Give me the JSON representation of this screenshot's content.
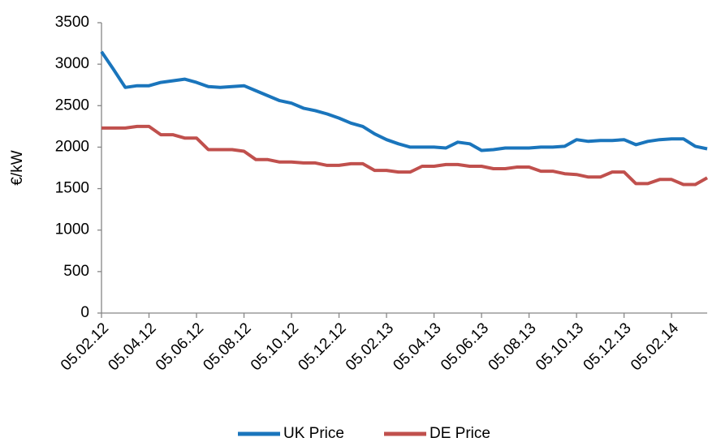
{
  "chart_data": {
    "type": "line",
    "y_label": "€/kW",
    "categories": [
      "05.02.12",
      null,
      null,
      null,
      "05.04.12",
      null,
      null,
      null,
      "05.06.12",
      null,
      null,
      null,
      "05.08.12",
      null,
      null,
      null,
      "05.10.12",
      null,
      null,
      null,
      "05.12.12",
      null,
      null,
      null,
      "05.02.13",
      null,
      null,
      null,
      "05.04.13",
      null,
      null,
      null,
      "05.06.13",
      null,
      null,
      null,
      "05.08.13",
      null,
      null,
      null,
      "05.10.13",
      null,
      null,
      null,
      "05.12.13",
      null,
      null,
      null,
      "05.02.14",
      null,
      null,
      null
    ],
    "series": [
      {
        "name": "UK Price",
        "color": "#1a75bc",
        "values": [
          3150,
          2940,
          2720,
          2740,
          2740,
          2780,
          2800,
          2820,
          2780,
          2730,
          2720,
          2730,
          2740,
          2680,
          2620,
          2560,
          2530,
          2470,
          2440,
          2400,
          2350,
          2290,
          2250,
          2160,
          2090,
          2040,
          2000,
          2000,
          2000,
          1990,
          2060,
          2040,
          1960,
          1970,
          1990,
          1990,
          1990,
          2000,
          2000,
          2010,
          2090,
          2070,
          2080,
          2080,
          2090,
          2030,
          2070,
          2090,
          2100,
          2100,
          2010,
          1980
        ]
      },
      {
        "name": "DE Price",
        "color": "#c0504d",
        "values": [
          2230,
          2230,
          2230,
          2250,
          2250,
          2150,
          2150,
          2110,
          2110,
          1970,
          1970,
          1970,
          1950,
          1850,
          1850,
          1820,
          1820,
          1810,
          1810,
          1780,
          1780,
          1800,
          1800,
          1720,
          1720,
          1700,
          1700,
          1770,
          1770,
          1790,
          1790,
          1770,
          1770,
          1740,
          1740,
          1760,
          1760,
          1710,
          1710,
          1680,
          1670,
          1640,
          1640,
          1700,
          1700,
          1560,
          1560,
          1610,
          1610,
          1550,
          1550,
          1630
        ]
      }
    ],
    "ylim": [
      0,
      3500
    ],
    "yticks": [
      0,
      500,
      1000,
      1500,
      2000,
      2500,
      3000,
      3500
    ],
    "grid": false,
    "legend": "bottom"
  }
}
